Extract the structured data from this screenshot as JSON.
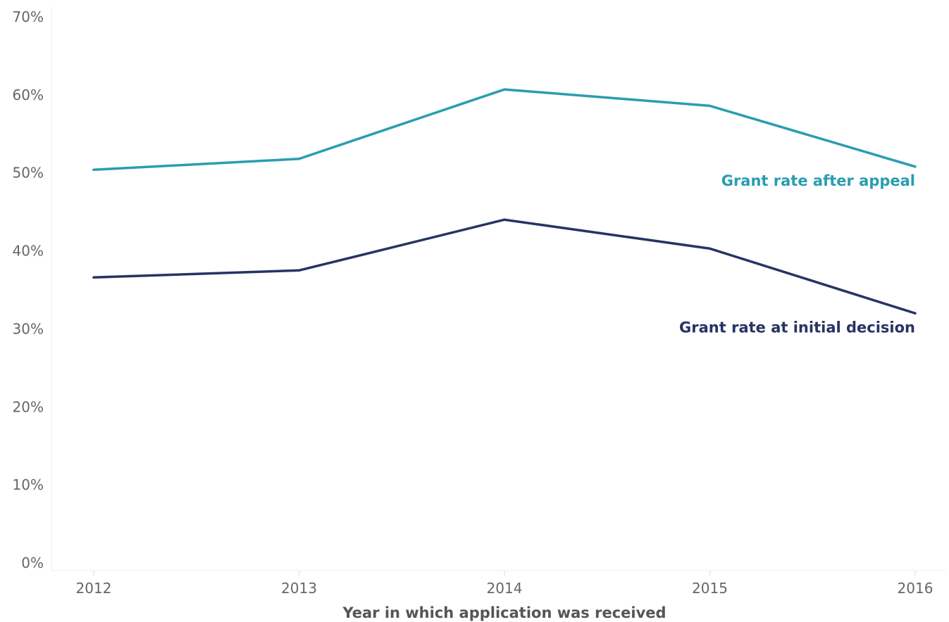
{
  "chart_data": {
    "type": "line",
    "x": [
      "2012",
      "2013",
      "2014",
      "2015",
      "2016"
    ],
    "series": [
      {
        "name": "Grant rate after appeal",
        "values": [
          50.4,
          51.8,
          60.7,
          58.6,
          50.8
        ],
        "color": "#2a9db0"
      },
      {
        "name": "Grant rate at initial decision",
        "values": [
          36.6,
          37.5,
          44.0,
          40.3,
          32.0
        ],
        "color": "#263463"
      }
    ],
    "xlabel": "Year in which application was received",
    "ylabel": "",
    "ylim": [
      0,
      70
    ],
    "y_ticks": [
      "0%",
      "10%",
      "20%",
      "30%",
      "40%",
      "50%",
      "60%",
      "70%"
    ],
    "grid": false,
    "legend": "direct labels at right end of lines"
  }
}
